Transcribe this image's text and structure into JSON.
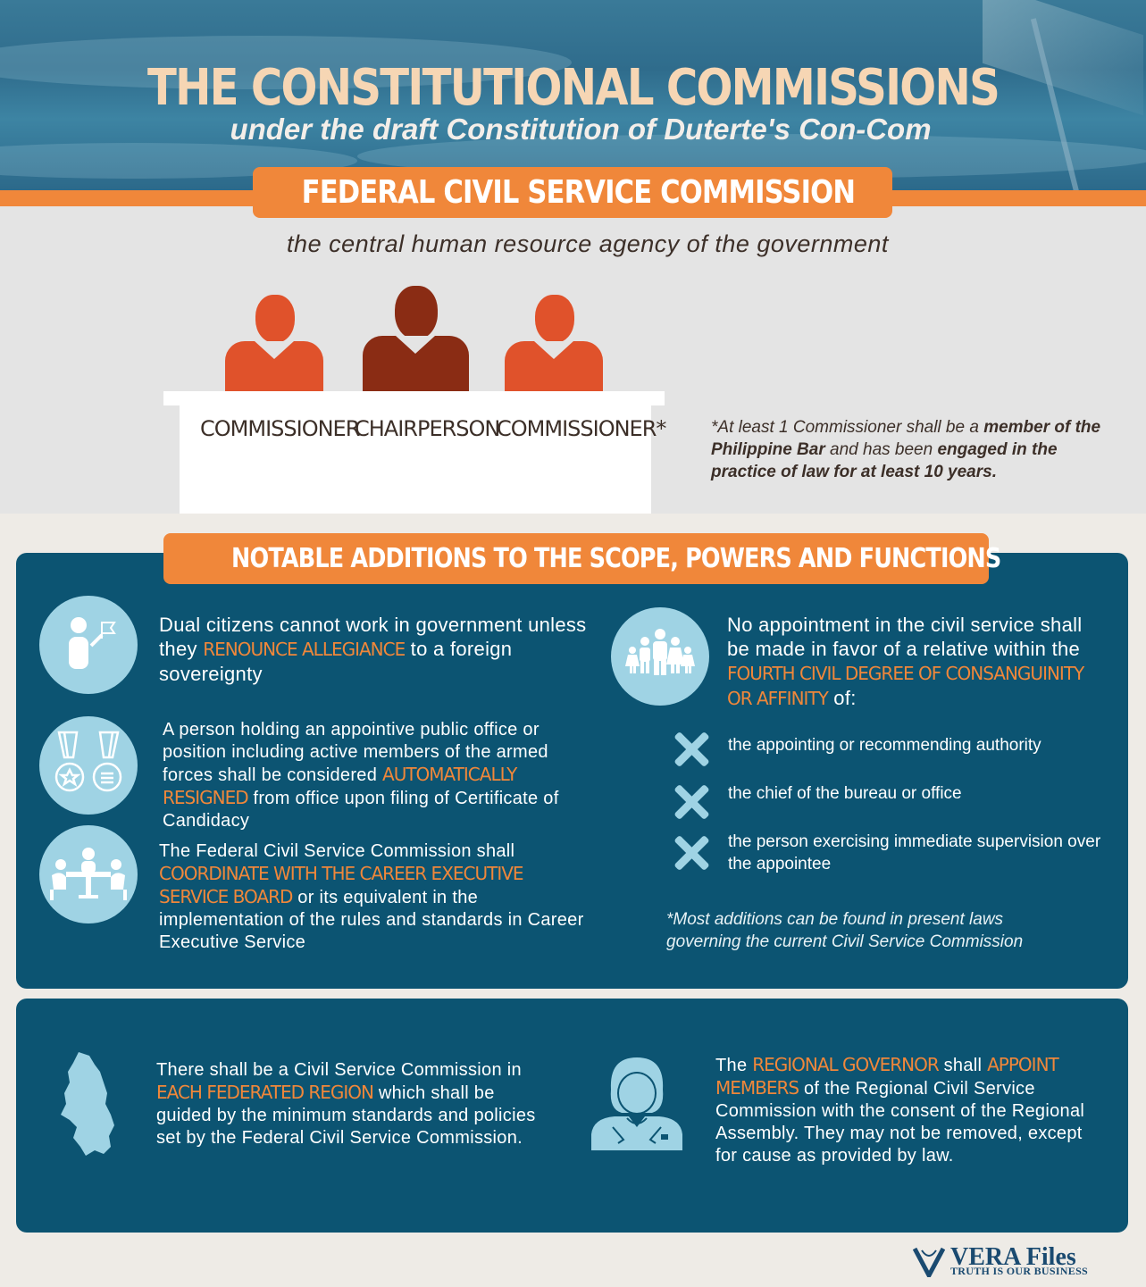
{
  "header": {
    "title": "THE CONSTITUTIONAL COMMISSIONS",
    "subtitle": "under the draft Constitution of  Duterte's Con-Com"
  },
  "commission": {
    "name": "FEDERAL CIVIL SERVICE COMMISSION",
    "tagline": "the central human resource agency of the government",
    "roles": [
      "COMMISSIONER",
      "CHAIRPERSON",
      "COMMISSIONER*"
    ],
    "note": {
      "pre": "*At least 1 Commissioner shall be a ",
      "b1": "member of the Philippine Bar",
      "mid": " and has been ",
      "b2": "engaged in the practice of law for at least 10 years."
    }
  },
  "notable": {
    "heading": "NOTABLE ADDITIONS TO THE SCOPE, POWERS AND FUNCTIONS",
    "items": [
      {
        "icon": "person-flag-icon",
        "pre": "Dual citizens cannot work in government unless they ",
        "hl": "RENOUNCE ALLEGIANCE",
        "post": " to a foreign sovereignty"
      },
      {
        "icon": "medals-icon",
        "pre": "A person holding an appointive public office or position including active members of the armed forces shall be considered ",
        "hl": "AUTOMATICALLY RESIGNED",
        "post": " from office upon filing of Certificate of Candidacy"
      },
      {
        "icon": "meeting-table-icon",
        "pre": "The Federal Civil Service Commission shall ",
        "hl": "COORDINATE WITH THE CAREER EXECUTIVE SERVICE BOARD",
        "post": " or its equivalent in the implementation of the rules and standards in Career Executive Service"
      }
    ],
    "nepotism": {
      "icon": "family-icon",
      "pre": "No appointment in the civil service shall be made in favor of a relative within the ",
      "hl": "FOURTH CIVIL DEGREE OF CONSANGUINITY OR AFFINITY",
      "post": " of:",
      "list": [
        "the appointing or recommending authority",
        "the chief of the bureau or office",
        "the person exercising immediate supervision over the appointee"
      ]
    },
    "footnote": "*Most additions can be found in present laws governing the current Civil Service Commission"
  },
  "regional": {
    "left": {
      "icon": "region-map-icon",
      "pre": "There shall be a Civil Service Commission in ",
      "hl": "EACH FEDERATED REGION",
      "post": " which shall be guided by the minimum standards and policies set by the Federal Civil Service Commission."
    },
    "right": {
      "icon": "governor-woman-icon",
      "pre": "The ",
      "hl1": "REGIONAL GOVERNOR",
      "mid": " shall ",
      "hl2": "APPOINT MEMBERS",
      "post": " of the Regional Civil Service Commission with the consent of the Regional Assembly. They may not be removed, except for cause as provided by law."
    }
  },
  "logo": {
    "name": "VERA Files",
    "tagline": "TRUTH IS OUR BUSINESS"
  },
  "colors": {
    "accent": "#f0873a",
    "panel": "#0c5472",
    "icon_bg": "#9fd3e4",
    "commissioner": "#e0522b",
    "chairperson": "#8a2c14"
  }
}
